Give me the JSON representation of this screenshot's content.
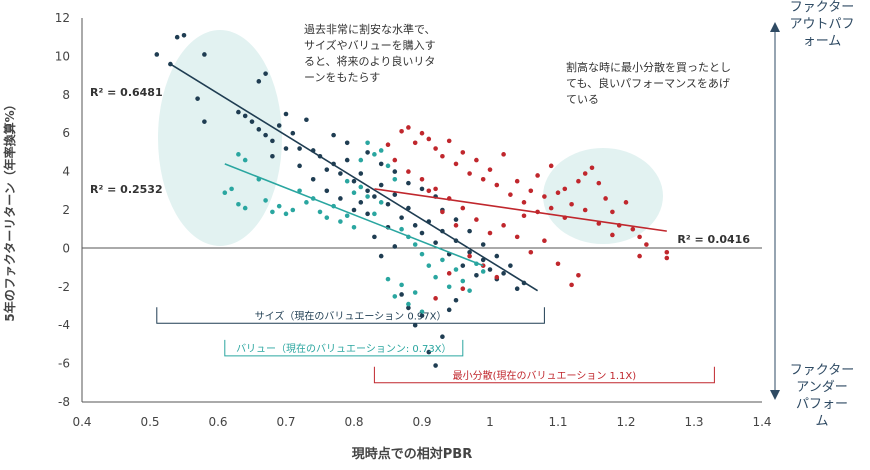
{
  "chart_data": {
    "type": "scatter",
    "xlabel": "現時点での相対PBR",
    "ylabel": "5年のファクターリターン（年率換算%）",
    "xlim": [
      0.4,
      1.4
    ],
    "ylim": [
      -8,
      12
    ],
    "x_ticks": [
      "0.4",
      "0.5",
      "0.6",
      "0.7",
      "0.8",
      "0.9",
      "1",
      "1.1",
      "1.2",
      "1.3",
      "1.4"
    ],
    "y_ticks": [
      "12",
      "10",
      "8",
      "6",
      "4",
      "2",
      "0",
      "-2",
      "-4",
      "-6",
      "-8"
    ],
    "grid": false,
    "series": [
      {
        "name": "サイズ",
        "color": "#1f3d52",
        "trend": {
          "x": [
            0.53,
            1.07
          ],
          "y": [
            9.6,
            -2.2
          ]
        },
        "r2_label": "R² = 0.6481",
        "points": [
          [
            0.51,
            10.1
          ],
          [
            0.53,
            9.6
          ],
          [
            0.54,
            11.0
          ],
          [
            0.55,
            11.1
          ],
          [
            0.58,
            10.1
          ],
          [
            0.57,
            7.8
          ],
          [
            0.58,
            6.6
          ],
          [
            0.63,
            7.1
          ],
          [
            0.64,
            6.9
          ],
          [
            0.66,
            8.7
          ],
          [
            0.67,
            9.1
          ],
          [
            0.65,
            6.6
          ],
          [
            0.66,
            6.2
          ],
          [
            0.67,
            5.9
          ],
          [
            0.68,
            5.6
          ],
          [
            0.69,
            6.4
          ],
          [
            0.7,
            7.0
          ],
          [
            0.71,
            6.0
          ],
          [
            0.72,
            5.2
          ],
          [
            0.73,
            6.7
          ],
          [
            0.74,
            5.1
          ],
          [
            0.75,
            4.8
          ],
          [
            0.76,
            4.1
          ],
          [
            0.77,
            4.4
          ],
          [
            0.78,
            3.9
          ],
          [
            0.79,
            4.6
          ],
          [
            0.8,
            3.5
          ],
          [
            0.81,
            3.9
          ],
          [
            0.82,
            3.0
          ],
          [
            0.83,
            2.7
          ],
          [
            0.84,
            3.3
          ],
          [
            0.85,
            2.3
          ],
          [
            0.86,
            2.8
          ],
          [
            0.87,
            1.6
          ],
          [
            0.88,
            2.1
          ],
          [
            0.89,
            1.2
          ],
          [
            0.9,
            0.8
          ],
          [
            0.91,
            1.4
          ],
          [
            0.92,
            0.3
          ],
          [
            0.93,
            0.9
          ],
          [
            0.94,
            -0.3
          ],
          [
            0.95,
            0.4
          ],
          [
            0.96,
            -0.9
          ],
          [
            0.97,
            -0.2
          ],
          [
            0.98,
            -1.4
          ],
          [
            0.99,
            -0.6
          ],
          [
            1.0,
            -1.1
          ],
          [
            1.01,
            -1.6
          ],
          [
            1.02,
            -1.3
          ],
          [
            1.04,
            -2.1
          ],
          [
            1.05,
            -1.8
          ],
          [
            0.87,
            -2.4
          ],
          [
            0.88,
            -3.1
          ],
          [
            0.89,
            -4.0
          ],
          [
            0.9,
            -3.5
          ],
          [
            0.91,
            -5.4
          ],
          [
            0.92,
            -6.1
          ],
          [
            0.93,
            -4.6
          ],
          [
            0.94,
            -3.2
          ],
          [
            0.95,
            -2.7
          ],
          [
            0.86,
            0.1
          ],
          [
            0.85,
            1.1
          ],
          [
            0.84,
            -0.4
          ],
          [
            0.83,
            0.6
          ],
          [
            0.82,
            1.8
          ],
          [
            0.81,
            2.4
          ],
          [
            0.8,
            2.0
          ],
          [
            0.78,
            2.6
          ],
          [
            0.76,
            3.0
          ],
          [
            0.74,
            3.6
          ],
          [
            0.72,
            4.3
          ],
          [
            0.7,
            5.2
          ],
          [
            0.68,
            4.8
          ],
          [
            0.93,
            2.0
          ],
          [
            0.95,
            1.5
          ],
          [
            0.97,
            0.9
          ],
          [
            0.99,
            0.2
          ],
          [
            1.01,
            -0.4
          ],
          [
            1.03,
            -0.9
          ],
          [
            0.9,
            3.1
          ],
          [
            0.92,
            2.7
          ],
          [
            0.88,
            3.4
          ],
          [
            0.86,
            4.0
          ],
          [
            0.84,
            4.4
          ],
          [
            0.82,
            5.0
          ],
          [
            0.79,
            5.5
          ],
          [
            0.77,
            5.9
          ]
        ]
      },
      {
        "name": "バリュー",
        "color": "#2aa6a0",
        "trend": {
          "x": [
            0.61,
            0.99
          ],
          "y": [
            4.4,
            -0.9
          ]
        },
        "r2_label": "R² = 0.2532",
        "points": [
          [
            0.61,
            2.9
          ],
          [
            0.62,
            3.1
          ],
          [
            0.63,
            4.9
          ],
          [
            0.64,
            4.6
          ],
          [
            0.63,
            2.3
          ],
          [
            0.64,
            2.1
          ],
          [
            0.66,
            3.6
          ],
          [
            0.67,
            2.5
          ],
          [
            0.68,
            1.9
          ],
          [
            0.69,
            2.2
          ],
          [
            0.7,
            1.8
          ],
          [
            0.71,
            2.0
          ],
          [
            0.72,
            3.0
          ],
          [
            0.73,
            2.4
          ],
          [
            0.74,
            2.6
          ],
          [
            0.75,
            1.9
          ],
          [
            0.76,
            1.6
          ],
          [
            0.77,
            2.2
          ],
          [
            0.78,
            1.4
          ],
          [
            0.79,
            1.7
          ],
          [
            0.8,
            1.1
          ],
          [
            0.81,
            4.6
          ],
          [
            0.82,
            5.5
          ],
          [
            0.83,
            4.9
          ],
          [
            0.84,
            5.1
          ],
          [
            0.85,
            4.3
          ],
          [
            0.86,
            3.6
          ],
          [
            0.87,
            1.0
          ],
          [
            0.88,
            0.6
          ],
          [
            0.89,
            0.2
          ],
          [
            0.9,
            -0.3
          ],
          [
            0.91,
            -0.9
          ],
          [
            0.92,
            -1.5
          ],
          [
            0.93,
            -0.6
          ],
          [
            0.94,
            -2.0
          ],
          [
            0.95,
            -1.1
          ],
          [
            0.96,
            -1.7
          ],
          [
            0.97,
            -2.2
          ],
          [
            0.98,
            -0.8
          ],
          [
            0.99,
            -1.2
          ],
          [
            0.85,
            -1.6
          ],
          [
            0.86,
            -2.5
          ],
          [
            0.87,
            -1.9
          ],
          [
            0.88,
            -2.9
          ],
          [
            0.89,
            -2.3
          ],
          [
            0.9,
            -3.3
          ],
          [
            0.84,
            2.4
          ],
          [
            0.83,
            1.8
          ],
          [
            0.82,
            2.7
          ],
          [
            0.81,
            3.2
          ],
          [
            0.8,
            2.9
          ],
          [
            0.79,
            3.5
          ]
        ]
      },
      {
        "name": "最小分散",
        "color": "#c0272d",
        "trend": {
          "x": [
            0.83,
            1.26
          ],
          "y": [
            3.1,
            0.9
          ]
        },
        "r2_label": "R² = 0.0416",
        "points": [
          [
            0.88,
            6.3
          ],
          [
            0.9,
            6.0
          ],
          [
            0.91,
            5.7
          ],
          [
            0.92,
            5.2
          ],
          [
            0.93,
            4.8
          ],
          [
            0.94,
            5.6
          ],
          [
            0.95,
            4.4
          ],
          [
            0.96,
            5.0
          ],
          [
            0.97,
            3.9
          ],
          [
            0.98,
            4.6
          ],
          [
            0.99,
            3.6
          ],
          [
            1.0,
            4.1
          ],
          [
            1.01,
            3.3
          ],
          [
            1.02,
            4.9
          ],
          [
            1.03,
            2.8
          ],
          [
            1.04,
            3.5
          ],
          [
            1.05,
            2.4
          ],
          [
            1.06,
            3.0
          ],
          [
            1.07,
            1.9
          ],
          [
            1.08,
            2.7
          ],
          [
            1.09,
            2.1
          ],
          [
            1.1,
            2.9
          ],
          [
            1.11,
            1.6
          ],
          [
            1.12,
            2.3
          ],
          [
            1.13,
            3.5
          ],
          [
            1.14,
            3.9
          ],
          [
            1.15,
            4.2
          ],
          [
            1.16,
            3.4
          ],
          [
            1.17,
            2.6
          ],
          [
            1.18,
            1.9
          ],
          [
            1.19,
            1.2
          ],
          [
            1.2,
            2.4
          ],
          [
            1.21,
            1.0
          ],
          [
            1.22,
            0.6
          ],
          [
            1.23,
            0.2
          ],
          [
            1.26,
            -0.2
          ],
          [
            1.26,
            -0.5
          ],
          [
            1.22,
            -0.4
          ],
          [
            1.13,
            -1.4
          ],
          [
            1.12,
            -1.9
          ],
          [
            1.1,
            -0.8
          ],
          [
            1.08,
            0.4
          ],
          [
            1.06,
            -0.2
          ],
          [
            1.04,
            0.6
          ],
          [
            1.02,
            1.2
          ],
          [
            1.0,
            0.8
          ],
          [
            0.98,
            1.5
          ],
          [
            0.96,
            2.1
          ],
          [
            0.94,
            2.6
          ],
          [
            0.92,
            3.1
          ],
          [
            0.9,
            3.6
          ],
          [
            0.88,
            4.0
          ],
          [
            0.86,
            4.6
          ],
          [
            0.85,
            5.4
          ],
          [
            0.87,
            6.1
          ],
          [
            0.89,
            5.5
          ],
          [
            0.91,
            3.0
          ],
          [
            0.93,
            1.9
          ],
          [
            0.95,
            1.2
          ],
          [
            0.97,
            -0.4
          ],
          [
            0.99,
            -0.9
          ],
          [
            1.01,
            -1.5
          ],
          [
            0.94,
            -1.3
          ],
          [
            0.96,
            -2.1
          ],
          [
            0.92,
            -2.6
          ],
          [
            1.05,
            1.7
          ],
          [
            1.07,
            3.8
          ],
          [
            1.09,
            4.3
          ],
          [
            1.11,
            3.1
          ],
          [
            1.14,
            2.0
          ],
          [
            1.16,
            1.3
          ],
          [
            1.18,
            0.7
          ]
        ]
      }
    ]
  },
  "annotations": {
    "top_left_note": [
      "過去非常に割安な水準で、",
      "サイズやバリューを購入す",
      "ると、将来のより良いリタ",
      "ーンをもたらす"
    ],
    "top_right_note": [
      "割高な時に最小分散を買ったとし",
      "ても、良いパフォーマンスをあげ",
      "ている"
    ],
    "outperform_label": [
      "ファクター",
      "アウトパフ",
      "ォーム"
    ],
    "underperform_label": [
      "ファクター",
      "アンダー",
      "パフォー",
      "ム"
    ]
  },
  "brackets": [
    {
      "label": "サイズ（現在のバリュエーション 0.97X）",
      "color": "#1f3d52",
      "x_from": 0.51,
      "x_to": 1.08,
      "y": -3.9
    },
    {
      "label": "バリュー（現在のバリュエーションン: 0.73X）",
      "color": "#2aa6a0",
      "x_from": 0.61,
      "x_to": 0.96,
      "y": -5.6
    },
    {
      "label": "最小分散(現在のバリュエーション 1.1X)",
      "color": "#c0272d",
      "x_from": 0.83,
      "x_to": 1.33,
      "y": -7.0
    }
  ],
  "highlight_color": "#e2f2f1",
  "axis_color": "#555555"
}
